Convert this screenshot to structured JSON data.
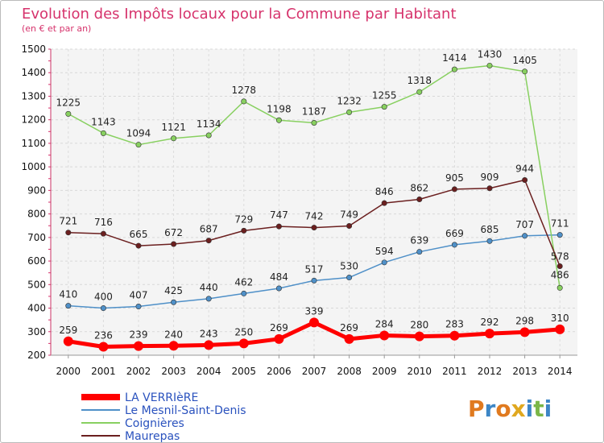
{
  "chart_data": {
    "type": "line",
    "title": "Evolution des Impôts locaux pour la Commune par Habitant",
    "subtitle": "(en € et par an)",
    "categories": [
      "2000",
      "2001",
      "2002",
      "2003",
      "2004",
      "2005",
      "2006",
      "2007",
      "2008",
      "2009",
      "2010",
      "2011",
      "2012",
      "2013",
      "2014"
    ],
    "ylim": [
      200,
      1500
    ],
    "yticks": [
      200,
      300,
      400,
      500,
      600,
      700,
      800,
      900,
      1000,
      1100,
      1200,
      1300,
      1400,
      1500
    ],
    "grid": true,
    "legend_position": "bottom-left",
    "series": [
      {
        "name": "LA VERRIèRE",
        "color": "#ff0000",
        "values": [
          259,
          236,
          239,
          240,
          243,
          250,
          269,
          339,
          269,
          284,
          280,
          283,
          292,
          298,
          310
        ]
      },
      {
        "name": "Le Mesnil-Saint-Denis",
        "color": "#4f90c8",
        "values": [
          410,
          400,
          407,
          425,
          440,
          462,
          484,
          517,
          530,
          594,
          639,
          669,
          685,
          707,
          711
        ]
      },
      {
        "name": "Coignières",
        "color": "#88d060",
        "values": [
          1225,
          1143,
          1094,
          1121,
          1134,
          1278,
          1198,
          1187,
          1232,
          1255,
          1318,
          1414,
          1430,
          1405,
          486
        ]
      },
      {
        "name": "Maurepas",
        "color": "#6b1f1f",
        "values": [
          721,
          716,
          665,
          672,
          687,
          729,
          747,
          742,
          749,
          846,
          862,
          905,
          909,
          944,
          578
        ]
      }
    ]
  },
  "brand": {
    "letters": [
      "P",
      "r",
      "o",
      "x",
      "i",
      "t",
      "i"
    ],
    "colors": [
      "#e07a1f",
      "#3d86c6",
      "#e07a1f",
      "#e0a81f",
      "#3d86c6",
      "#7ab648",
      "#3d86c6"
    ]
  }
}
